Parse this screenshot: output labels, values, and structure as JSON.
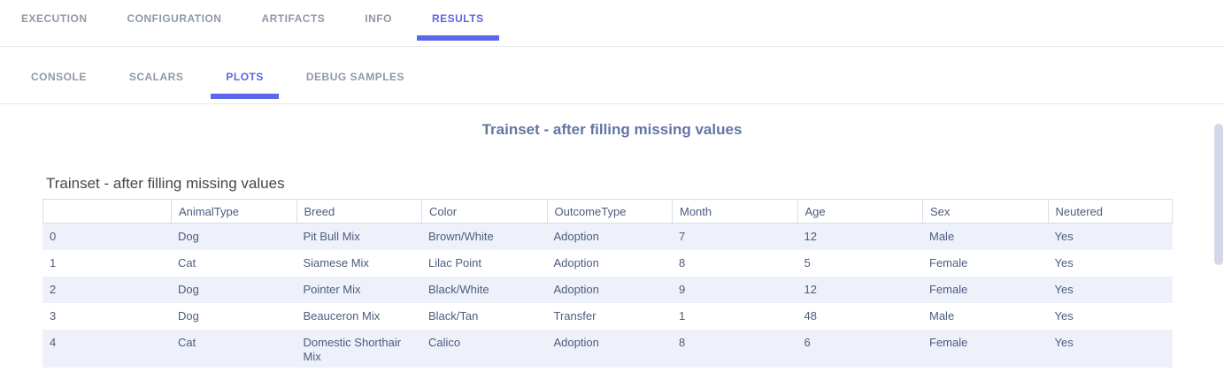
{
  "header": {
    "tabs": [
      {
        "label": "EXECUTION",
        "active": false
      },
      {
        "label": "CONFIGURATION",
        "active": false
      },
      {
        "label": "ARTIFACTS",
        "active": false
      },
      {
        "label": "INFO",
        "active": false
      },
      {
        "label": "RESULTS",
        "active": true
      }
    ]
  },
  "results_tabs": {
    "tabs": [
      {
        "label": "CONSOLE",
        "active": false
      },
      {
        "label": "SCALARS",
        "active": false
      },
      {
        "label": "PLOTS",
        "active": true
      },
      {
        "label": "DEBUG SAMPLES",
        "active": false
      }
    ]
  },
  "plot_card": {
    "title": "Trainset - after filling missing values"
  },
  "chart_data": {
    "type": "table",
    "title": "Trainset - after filling missing values",
    "columns": [
      "",
      "AnimalType",
      "Breed",
      "Color",
      "OutcomeType",
      "Month",
      "Age",
      "Sex",
      "Neutered"
    ],
    "rows": [
      [
        "0",
        "Dog",
        "Pit Bull Mix",
        "Brown/White",
        "Adoption",
        "7",
        "12",
        "Male",
        "Yes"
      ],
      [
        "1",
        "Cat",
        "Siamese Mix",
        "Lilac Point",
        "Adoption",
        "8",
        "5",
        "Female",
        "Yes"
      ],
      [
        "2",
        "Dog",
        "Pointer Mix",
        "Black/White",
        "Adoption",
        "9",
        "12",
        "Female",
        "Yes"
      ],
      [
        "3",
        "Dog",
        "Beauceron Mix",
        "Black/Tan",
        "Transfer",
        "1",
        "48",
        "Male",
        "Yes"
      ],
      [
        "4",
        "Cat",
        "Domestic Shorthair Mix",
        "Calico",
        "Adoption",
        "8",
        "6",
        "Female",
        "Yes"
      ]
    ],
    "row_stripe_colors": [
      "#eff1fa",
      "#ffffff"
    ],
    "grid": false,
    "legend": false
  },
  "colors": {
    "active_tab_text": "#5966e6",
    "active_tab_underline": "#5b68ee",
    "inactive_tab_text": "#8f99a6",
    "card_title_text": "#6375a3",
    "plot_title_text": "#474747",
    "table_text": "#4d5b7e",
    "table_header_border": "#d9dde9",
    "row_stripe": "#eff1fa",
    "divider": "#e7e8ea",
    "scrollbar_thumb": "#d4d8e8"
  }
}
